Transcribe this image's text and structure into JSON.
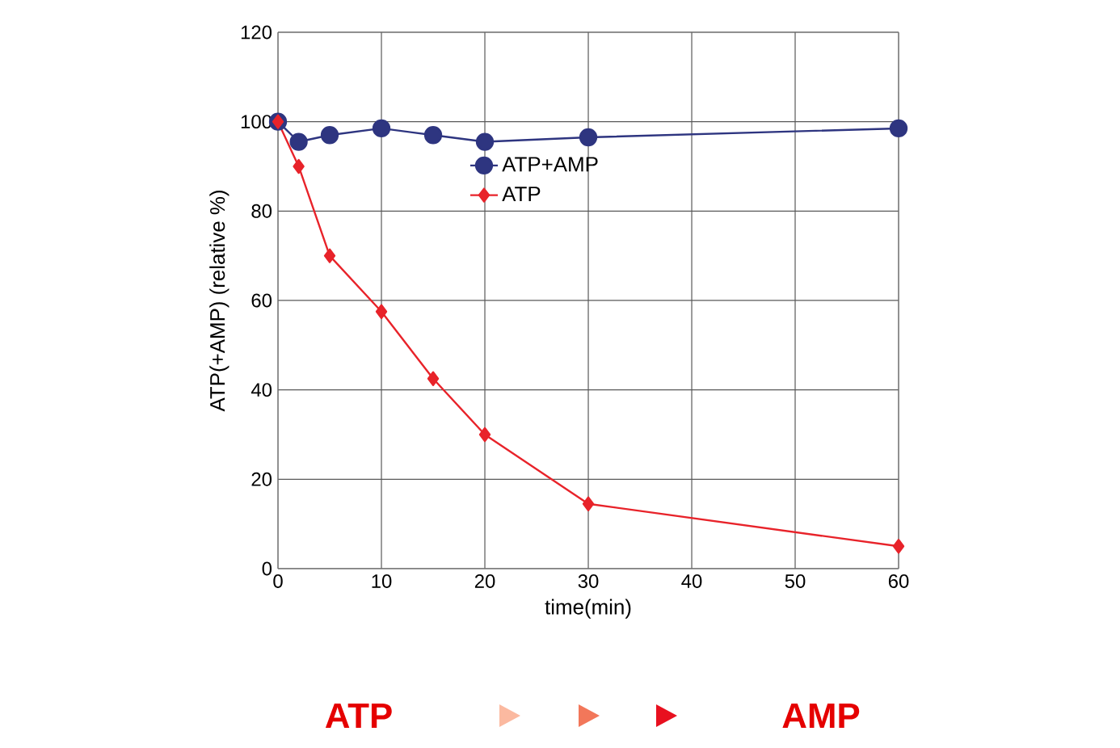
{
  "chart_data": {
    "type": "line",
    "xlabel": "time(min)",
    "ylabel": "ATP(+AMP) (relative %)",
    "xlim": [
      0,
      60
    ],
    "xticks": [
      0,
      10,
      20,
      30,
      40,
      50,
      60
    ],
    "ylim": [
      0,
      120
    ],
    "yticks": [
      0,
      20,
      40,
      60,
      80,
      100,
      120
    ],
    "grid": true,
    "legend": "top",
    "line_style": "solid",
    "series": [
      {
        "name": "ATP+AMP",
        "color": "#2e3580",
        "marker": "circle",
        "x": [
          0,
          2,
          5,
          10,
          15,
          20,
          30,
          60
        ],
        "values": [
          100,
          95.5,
          97,
          98.5,
          97,
          95.5,
          96.5,
          98.5
        ]
      },
      {
        "name": "ATP",
        "color": "#e8232a",
        "marker": "diamond",
        "x": [
          0,
          2,
          5,
          10,
          15,
          20,
          30,
          60
        ],
        "values": [
          100,
          90,
          70,
          57.5,
          42.5,
          30,
          14.5,
          5
        ]
      }
    ],
    "annotations": [
      "ATP",
      "AMP"
    ]
  }
}
